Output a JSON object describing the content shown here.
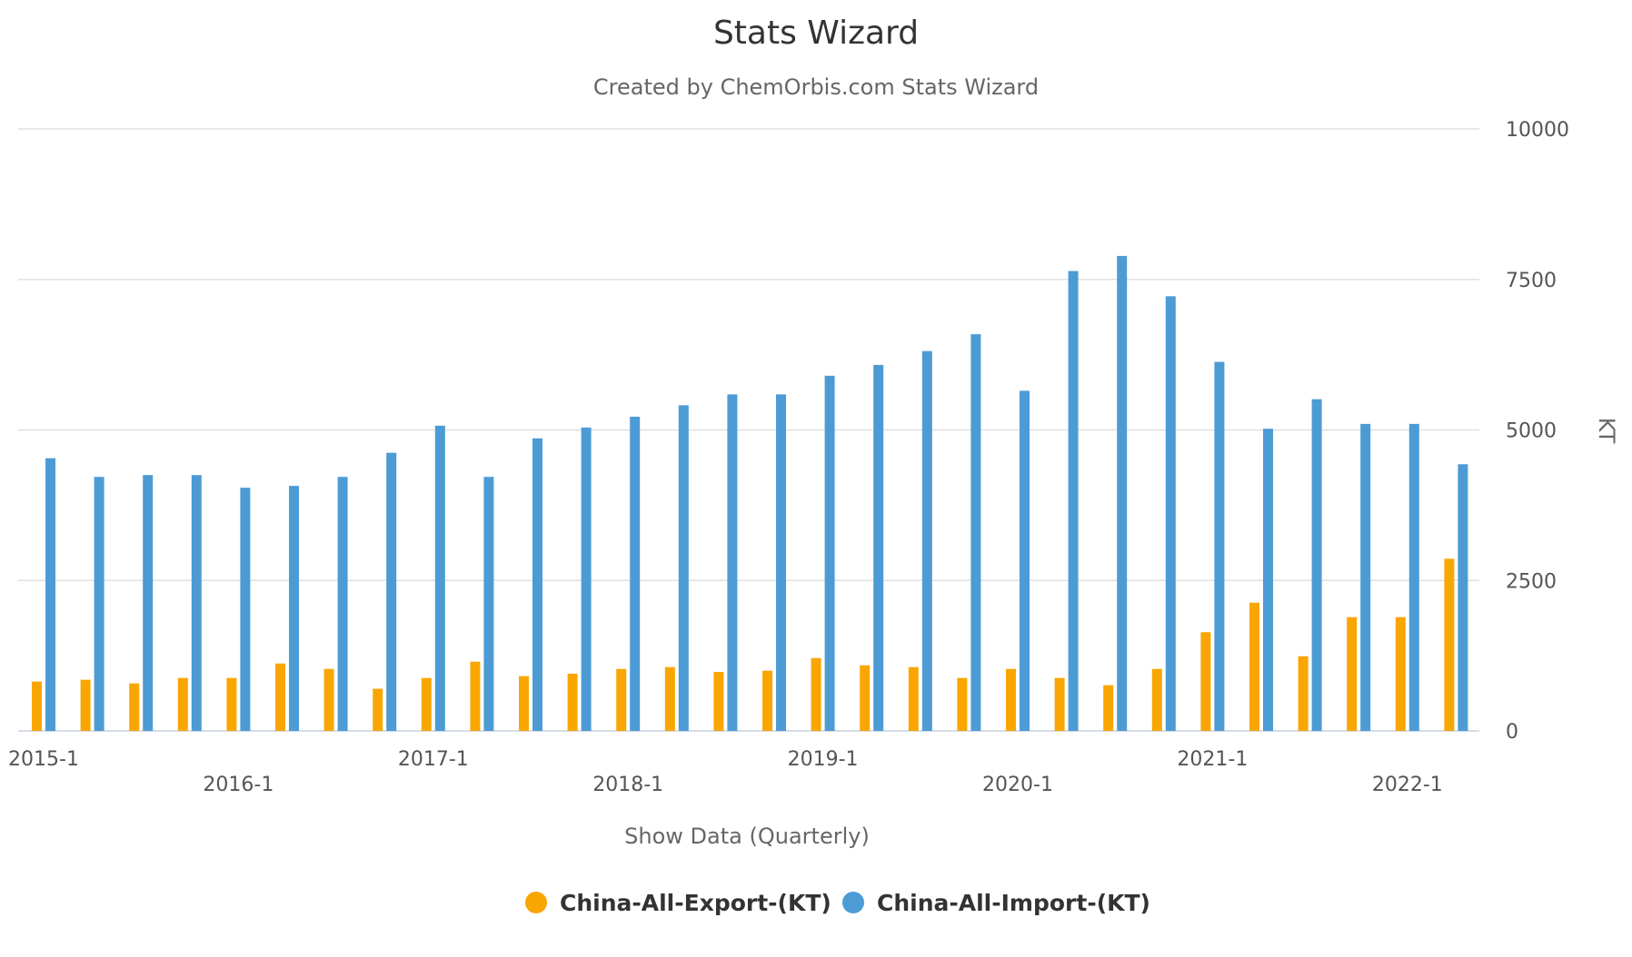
{
  "chart_data": {
    "type": "bar",
    "title": "Stats Wizard",
    "subtitle": "Created by ChemOrbis.com Stats Wizard",
    "xlabel": "Show Data (Quarterly)",
    "ylabel": "KT",
    "ylim": [
      0,
      10000
    ],
    "yticks": [
      "0",
      "2500",
      "5000",
      "7500",
      "10000"
    ],
    "y_axis_side": "right",
    "grid": true,
    "legend_position": "bottom",
    "categories": [
      "2015-1",
      "2015-2",
      "2015-3",
      "2015-4",
      "2016-1",
      "2016-2",
      "2016-3",
      "2016-4",
      "2017-1",
      "2017-2",
      "2017-3",
      "2017-4",
      "2018-1",
      "2018-2",
      "2018-3",
      "2018-4",
      "2019-1",
      "2019-2",
      "2019-3",
      "2019-4",
      "2020-1",
      "2020-2",
      "2020-3",
      "2020-4",
      "2021-1",
      "2021-2",
      "2021-3",
      "2021-4",
      "2022-1",
      "2022-2"
    ],
    "x_tick_labels": [
      {
        "label": "2015-1",
        "index": 0,
        "row": 1
      },
      {
        "label": "2016-1",
        "index": 4,
        "row": 2
      },
      {
        "label": "2017-1",
        "index": 8,
        "row": 1
      },
      {
        "label": "2018-1",
        "index": 12,
        "row": 2
      },
      {
        "label": "2019-1",
        "index": 16,
        "row": 1
      },
      {
        "label": "2020-1",
        "index": 20,
        "row": 2
      },
      {
        "label": "2021-1",
        "index": 24,
        "row": 1
      },
      {
        "label": "2022-1",
        "index": 28,
        "row": 2
      }
    ],
    "series": [
      {
        "name": "China-All-Export-(KT)",
        "color": "#f9a602",
        "values": [
          820,
          850,
          790,
          880,
          880,
          1120,
          1030,
          700,
          880,
          1150,
          910,
          950,
          1030,
          1060,
          980,
          1000,
          1210,
          1090,
          1060,
          880,
          1030,
          880,
          760,
          1030,
          1640,
          2130,
          1240,
          1890,
          1890,
          2860
        ]
      },
      {
        "name": "China-All-Import-(KT)",
        "color": "#4d9bd5",
        "values": [
          4530,
          4220,
          4250,
          4250,
          4040,
          4070,
          4220,
          4620,
          5070,
          4220,
          4860,
          5040,
          5220,
          5410,
          5590,
          5590,
          5900,
          6080,
          6310,
          6590,
          5650,
          7640,
          7890,
          7220,
          6130,
          5020,
          5510,
          5100,
          5100,
          4430
        ]
      }
    ]
  }
}
